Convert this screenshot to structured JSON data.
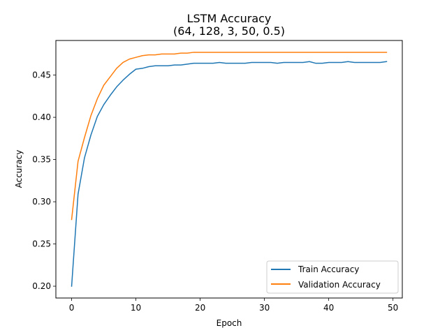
{
  "chart_data": {
    "type": "line",
    "title": "LSTM Accuracy",
    "subtitle": "(64, 128, 3, 50, 0.5)",
    "xlabel": "Epoch",
    "ylabel": "Accuracy",
    "xlim": [
      -2.45,
      51.45
    ],
    "ylim": [
      0.186,
      0.491
    ],
    "xticks": [
      0,
      10,
      20,
      30,
      40,
      50
    ],
    "yticks": [
      0.2,
      0.25,
      0.3,
      0.35,
      0.4,
      0.45
    ],
    "xtick_labels": [
      "0",
      "10",
      "20",
      "30",
      "40",
      "50"
    ],
    "ytick_labels": [
      "0.20",
      "0.25",
      "0.30",
      "0.35",
      "0.40",
      "0.45"
    ],
    "grid": false,
    "legend_position": "lower right",
    "x": [
      0,
      1,
      2,
      3,
      4,
      5,
      6,
      7,
      8,
      9,
      10,
      11,
      12,
      13,
      14,
      15,
      16,
      17,
      18,
      19,
      20,
      21,
      22,
      23,
      24,
      25,
      26,
      27,
      28,
      29,
      30,
      31,
      32,
      33,
      34,
      35,
      36,
      37,
      38,
      39,
      40,
      41,
      42,
      43,
      44,
      45,
      46,
      47,
      48,
      49
    ],
    "series": [
      {
        "name": "Train Accuracy",
        "color": "#1f77b4",
        "values": [
          0.2,
          0.309,
          0.352,
          0.379,
          0.401,
          0.415,
          0.426,
          0.436,
          0.444,
          0.451,
          0.457,
          0.458,
          0.46,
          0.461,
          0.461,
          0.461,
          0.462,
          0.462,
          0.463,
          0.464,
          0.464,
          0.464,
          0.464,
          0.465,
          0.464,
          0.464,
          0.464,
          0.464,
          0.465,
          0.465,
          0.465,
          0.465,
          0.464,
          0.465,
          0.465,
          0.465,
          0.465,
          0.466,
          0.464,
          0.464,
          0.465,
          0.465,
          0.465,
          0.466,
          0.465,
          0.465,
          0.465,
          0.465,
          0.465,
          0.466
        ]
      },
      {
        "name": "Validation Accuracy",
        "color": "#ff7f0e",
        "values": [
          0.279,
          0.348,
          0.376,
          0.402,
          0.422,
          0.438,
          0.448,
          0.458,
          0.465,
          0.469,
          0.471,
          0.473,
          0.474,
          0.474,
          0.475,
          0.475,
          0.475,
          0.476,
          0.476,
          0.477,
          0.477,
          0.477,
          0.477,
          0.477,
          0.477,
          0.477,
          0.477,
          0.477,
          0.477,
          0.477,
          0.477,
          0.477,
          0.477,
          0.477,
          0.477,
          0.477,
          0.477,
          0.477,
          0.477,
          0.477,
          0.477,
          0.477,
          0.477,
          0.477,
          0.477,
          0.477,
          0.477,
          0.477,
          0.477,
          0.477
        ]
      }
    ]
  }
}
